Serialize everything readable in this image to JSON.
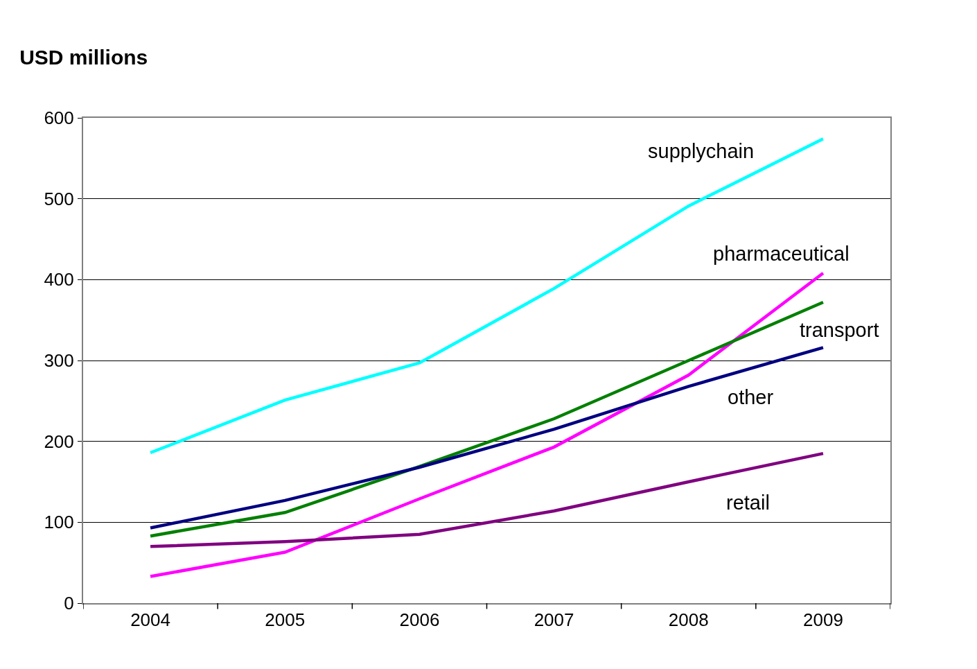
{
  "chart_data": {
    "type": "line",
    "title": "USD millions",
    "categories": [
      "2004",
      "2005",
      "2006",
      "2007",
      "2008",
      "2009"
    ],
    "series": [
      {
        "name": "supplychain",
        "color": "#00ffff",
        "values": [
          186,
          251,
          297,
          389,
          491,
          574
        ]
      },
      {
        "name": "pharmaceutical",
        "color": "#ff00ff",
        "values": [
          33,
          63,
          129,
          193,
          282,
          408
        ]
      },
      {
        "name": "transport",
        "color": "#008000",
        "values": [
          83,
          112,
          169,
          228,
          300,
          372
        ]
      },
      {
        "name": "other",
        "color": "#000080",
        "values": [
          93,
          127,
          168,
          215,
          268,
          316
        ]
      },
      {
        "name": "retail",
        "color": "#800080",
        "values": [
          70,
          76,
          85,
          114,
          150,
          185
        ]
      }
    ],
    "ylim": [
      0,
      600
    ],
    "yticks": [
      0,
      100,
      200,
      300,
      400,
      500,
      600
    ],
    "grid": "y",
    "legend": false,
    "marker": "none",
    "line_style": "solid"
  }
}
